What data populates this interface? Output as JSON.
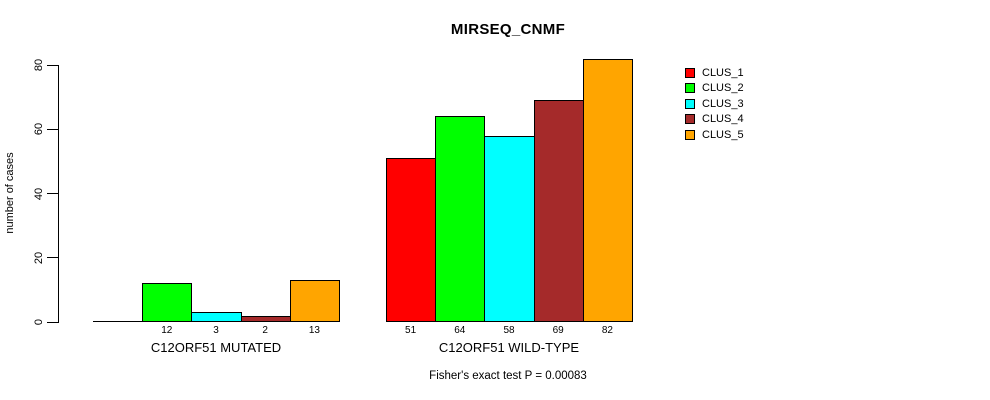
{
  "title": "MIRSEQ_CNMF",
  "y_axis": {
    "label": "number of cases",
    "ticks": [
      0,
      20,
      40,
      60,
      80
    ]
  },
  "footer": "Fisher's exact test P = 0.00083",
  "legend": {
    "items": [
      {
        "label": "CLUS_1",
        "color": "#FF0000"
      },
      {
        "label": "CLUS_2",
        "color": "#00FF00"
      },
      {
        "label": "CLUS_3",
        "color": "#00FFFF"
      },
      {
        "label": "CLUS_4",
        "color": "#A52A2A"
      },
      {
        "label": "CLUS_5",
        "color": "#FFA500"
      }
    ]
  },
  "chart_data": {
    "type": "bar",
    "title": "MIRSEQ_CNMF",
    "ylabel": "number of cases",
    "ylim": [
      0,
      80
    ],
    "yticks": [
      0,
      20,
      40,
      60,
      80
    ],
    "grid": false,
    "legend_position": "right-outside",
    "categories": [
      "C12ORF51 MUTATED",
      "C12ORF51 WILD-TYPE"
    ],
    "series": [
      {
        "name": "CLUS_1",
        "color": "#FF0000",
        "values": [
          0,
          51
        ]
      },
      {
        "name": "CLUS_2",
        "color": "#00FF00",
        "values": [
          12,
          64
        ]
      },
      {
        "name": "CLUS_3",
        "color": "#00FFFF",
        "values": [
          3,
          58
        ]
      },
      {
        "name": "CLUS_4",
        "color": "#A52A2A",
        "values": [
          2,
          69
        ]
      },
      {
        "name": "CLUS_5",
        "color": "#FFA500",
        "values": [
          13,
          82
        ]
      }
    ],
    "bar_labels": [
      [
        "",
        "12",
        "3",
        "2",
        "13"
      ],
      [
        "51",
        "64",
        "58",
        "69",
        "82"
      ]
    ],
    "annotation": "Fisher's exact test P = 0.00083"
  }
}
